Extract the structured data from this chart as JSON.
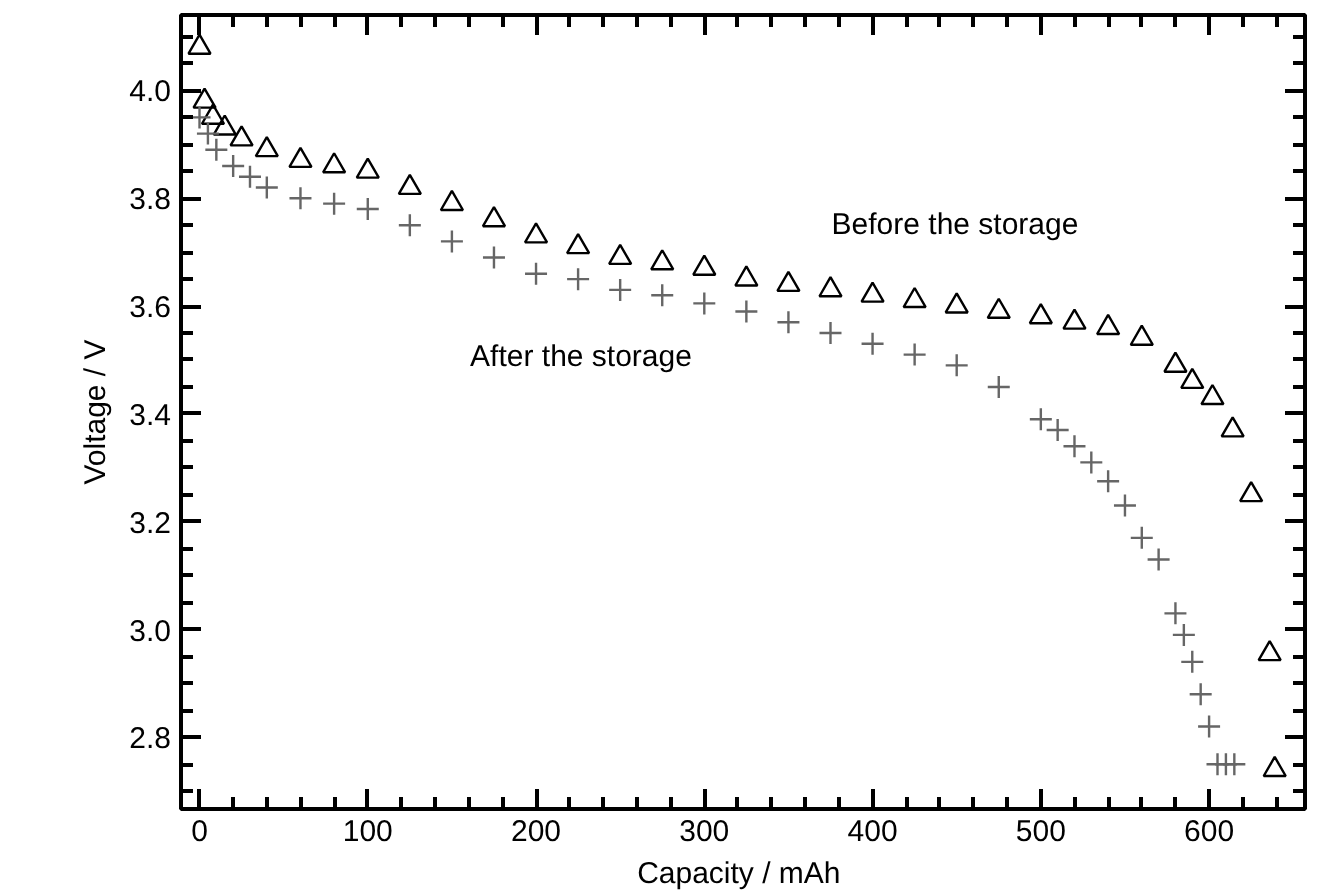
{
  "chart_data": {
    "type": "scatter",
    "xlabel": "Capacity  / mAh",
    "ylabel": "Voltage / V",
    "xlim": [
      -11,
      657
    ],
    "ylim": [
      2.667,
      4.14
    ],
    "xticks": [
      0,
      100,
      200,
      300,
      400,
      500,
      600
    ],
    "yticks": [
      {
        "value": 2.8,
        "label": "2.8"
      },
      {
        "value": 3.0,
        "label": "3.0"
      },
      {
        "value": 3.2,
        "label": "3.2"
      },
      {
        "value": 3.4,
        "label": "3.4"
      },
      {
        "value": 3.6,
        "label": "3.6"
      },
      {
        "value": 3.8,
        "label": "3.8"
      },
      {
        "value": 4.0,
        "label": "4.0"
      }
    ],
    "grid": false,
    "series": [
      {
        "marker": "triangle",
        "color": "#000000",
        "x": [
          0,
          3,
          8,
          15,
          25,
          40,
          60,
          80,
          100,
          125,
          150,
          175,
          200,
          225,
          250,
          275,
          300,
          325,
          350,
          375,
          400,
          425,
          450,
          475,
          500,
          520,
          540,
          560,
          580,
          590,
          602,
          614,
          625,
          636,
          639
        ],
        "values": [
          4.08,
          3.98,
          3.95,
          3.93,
          3.91,
          3.89,
          3.87,
          3.86,
          3.85,
          3.82,
          3.79,
          3.76,
          3.73,
          3.71,
          3.69,
          3.68,
          3.67,
          3.65,
          3.64,
          3.63,
          3.62,
          3.61,
          3.6,
          3.59,
          3.58,
          3.57,
          3.56,
          3.54,
          3.49,
          3.46,
          3.43,
          3.37,
          3.25,
          2.955,
          2.74
        ]
      },
      {
        "marker": "cross",
        "color": "#666666",
        "x": [
          0,
          5,
          10,
          20,
          30,
          40,
          60,
          80,
          100,
          125,
          150,
          175,
          200,
          225,
          250,
          275,
          300,
          325,
          350,
          375,
          400,
          425,
          450,
          475,
          500,
          510,
          520,
          530,
          540,
          550,
          560,
          570,
          580,
          585,
          590,
          595,
          600,
          605,
          610,
          615
        ],
        "values": [
          3.95,
          3.92,
          3.89,
          3.86,
          3.84,
          3.82,
          3.8,
          3.79,
          3.78,
          3.75,
          3.72,
          3.69,
          3.66,
          3.65,
          3.63,
          3.62,
          3.605,
          3.59,
          3.57,
          3.55,
          3.53,
          3.51,
          3.49,
          3.45,
          3.39,
          3.37,
          3.34,
          3.31,
          3.275,
          3.23,
          3.17,
          3.13,
          3.03,
          2.99,
          2.94,
          2.88,
          2.82,
          2.75,
          2.75,
          2.75
        ]
      }
    ],
    "annotations": [
      "Before the storage",
      "After the storage"
    ]
  }
}
